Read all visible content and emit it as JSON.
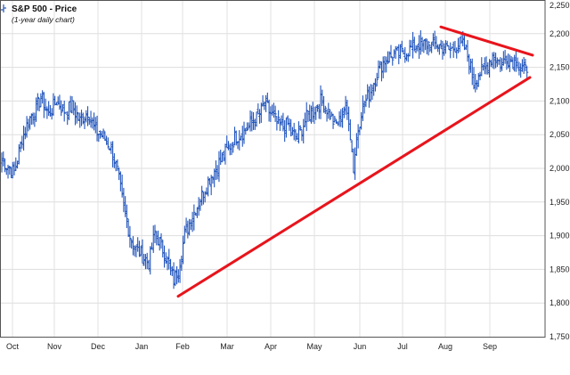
{
  "chart_data": {
    "type": "ohlc",
    "title": "S&P 500 - Price",
    "subtitle": "(1-year daily chart)",
    "xlabel": "",
    "ylabel": "",
    "ylim": [
      1750,
      2250
    ],
    "y_ticks": [
      "1,750",
      "1,800",
      "1,850",
      "1,900",
      "1,950",
      "2,000",
      "2,050",
      "2,100",
      "2,150",
      "2,200",
      "2,250"
    ],
    "x_ticks": [
      "Oct",
      "Nov",
      "Dec",
      "Jan",
      "Feb",
      "Mar",
      "Apr",
      "May",
      "Jun",
      "Jul",
      "Aug",
      "Sep"
    ],
    "grid": true,
    "legend": "top-left",
    "series_color": "#2255bb",
    "trendline_color": "#e8141c",
    "price_path": [
      [
        0,
        2012
      ],
      [
        5,
        2000
      ],
      [
        8,
        1995
      ],
      [
        13,
        2045
      ],
      [
        18,
        2075
      ],
      [
        22,
        2090
      ],
      [
        25,
        2105
      ],
      [
        30,
        2080
      ],
      [
        35,
        2100
      ],
      [
        40,
        2085
      ],
      [
        45,
        2092
      ],
      [
        50,
        2070
      ],
      [
        55,
        2085
      ],
      [
        60,
        2055
      ],
      [
        65,
        2048
      ],
      [
        70,
        2030
      ],
      [
        74,
        1995
      ],
      [
        78,
        1940
      ],
      [
        82,
        1900
      ],
      [
        86,
        1880
      ],
      [
        90,
        1870
      ],
      [
        94,
        1860
      ],
      [
        98,
        1905
      ],
      [
        103,
        1880
      ],
      [
        107,
        1855
      ],
      [
        110,
        1835
      ],
      [
        113,
        1850
      ],
      [
        117,
        1900
      ],
      [
        121,
        1925
      ],
      [
        125,
        1945
      ],
      [
        129,
        1965
      ],
      [
        133,
        1985
      ],
      [
        137,
        2000
      ],
      [
        141,
        2015
      ],
      [
        145,
        2030
      ],
      [
        149,
        2045
      ],
      [
        153,
        2052
      ],
      [
        157,
        2060
      ],
      [
        161,
        2070
      ],
      [
        165,
        2080
      ],
      [
        168,
        2098
      ],
      [
        171,
        2085
      ],
      [
        174,
        2075
      ],
      [
        177,
        2065
      ],
      [
        180,
        2060
      ],
      [
        183,
        2065
      ],
      [
        186,
        2050
      ],
      [
        189,
        2045
      ],
      [
        192,
        2060
      ],
      [
        195,
        2075
      ],
      [
        198,
        2082
      ],
      [
        201,
        2090
      ],
      [
        204,
        2100
      ],
      [
        207,
        2092
      ],
      [
        210,
        2080
      ],
      [
        213,
        2065
      ],
      [
        216,
        2070
      ],
      [
        219,
        2090
      ],
      [
        222,
        2075
      ],
      [
        225,
        2000
      ],
      [
        227,
        2045
      ],
      [
        230,
        2085
      ],
      [
        233,
        2100
      ],
      [
        236,
        2115
      ],
      [
        239,
        2135
      ],
      [
        242,
        2150
      ],
      [
        245,
        2160
      ],
      [
        248,
        2165
      ],
      [
        251,
        2168
      ],
      [
        254,
        2170
      ],
      [
        257,
        2172
      ],
      [
        260,
        2175
      ],
      [
        263,
        2180
      ],
      [
        266,
        2185
      ],
      [
        269,
        2182
      ],
      [
        272,
        2186
      ],
      [
        275,
        2183
      ],
      [
        278,
        2185
      ],
      [
        281,
        2180
      ],
      [
        284,
        2178
      ],
      [
        287,
        2175
      ],
      [
        290,
        2182
      ],
      [
        293,
        2185
      ],
      [
        296,
        2180
      ],
      [
        299,
        2160
      ],
      [
        302,
        2128
      ],
      [
        305,
        2140
      ],
      [
        308,
        2145
      ],
      [
        311,
        2155
      ],
      [
        314,
        2168
      ],
      [
        317,
        2160
      ],
      [
        320,
        2155
      ],
      [
        323,
        2165
      ],
      [
        326,
        2160
      ],
      [
        329,
        2162
      ],
      [
        332,
        2150
      ],
      [
        335,
        2145
      ],
      [
        336,
        2150
      ]
    ],
    "trendlines": [
      {
        "from": [
          "Feb",
          1810
        ],
        "to": [
          "Sep",
          2135
        ]
      },
      {
        "from": [
          "Aug",
          2210
        ],
        "to": [
          "Sep",
          2168
        ]
      }
    ]
  }
}
